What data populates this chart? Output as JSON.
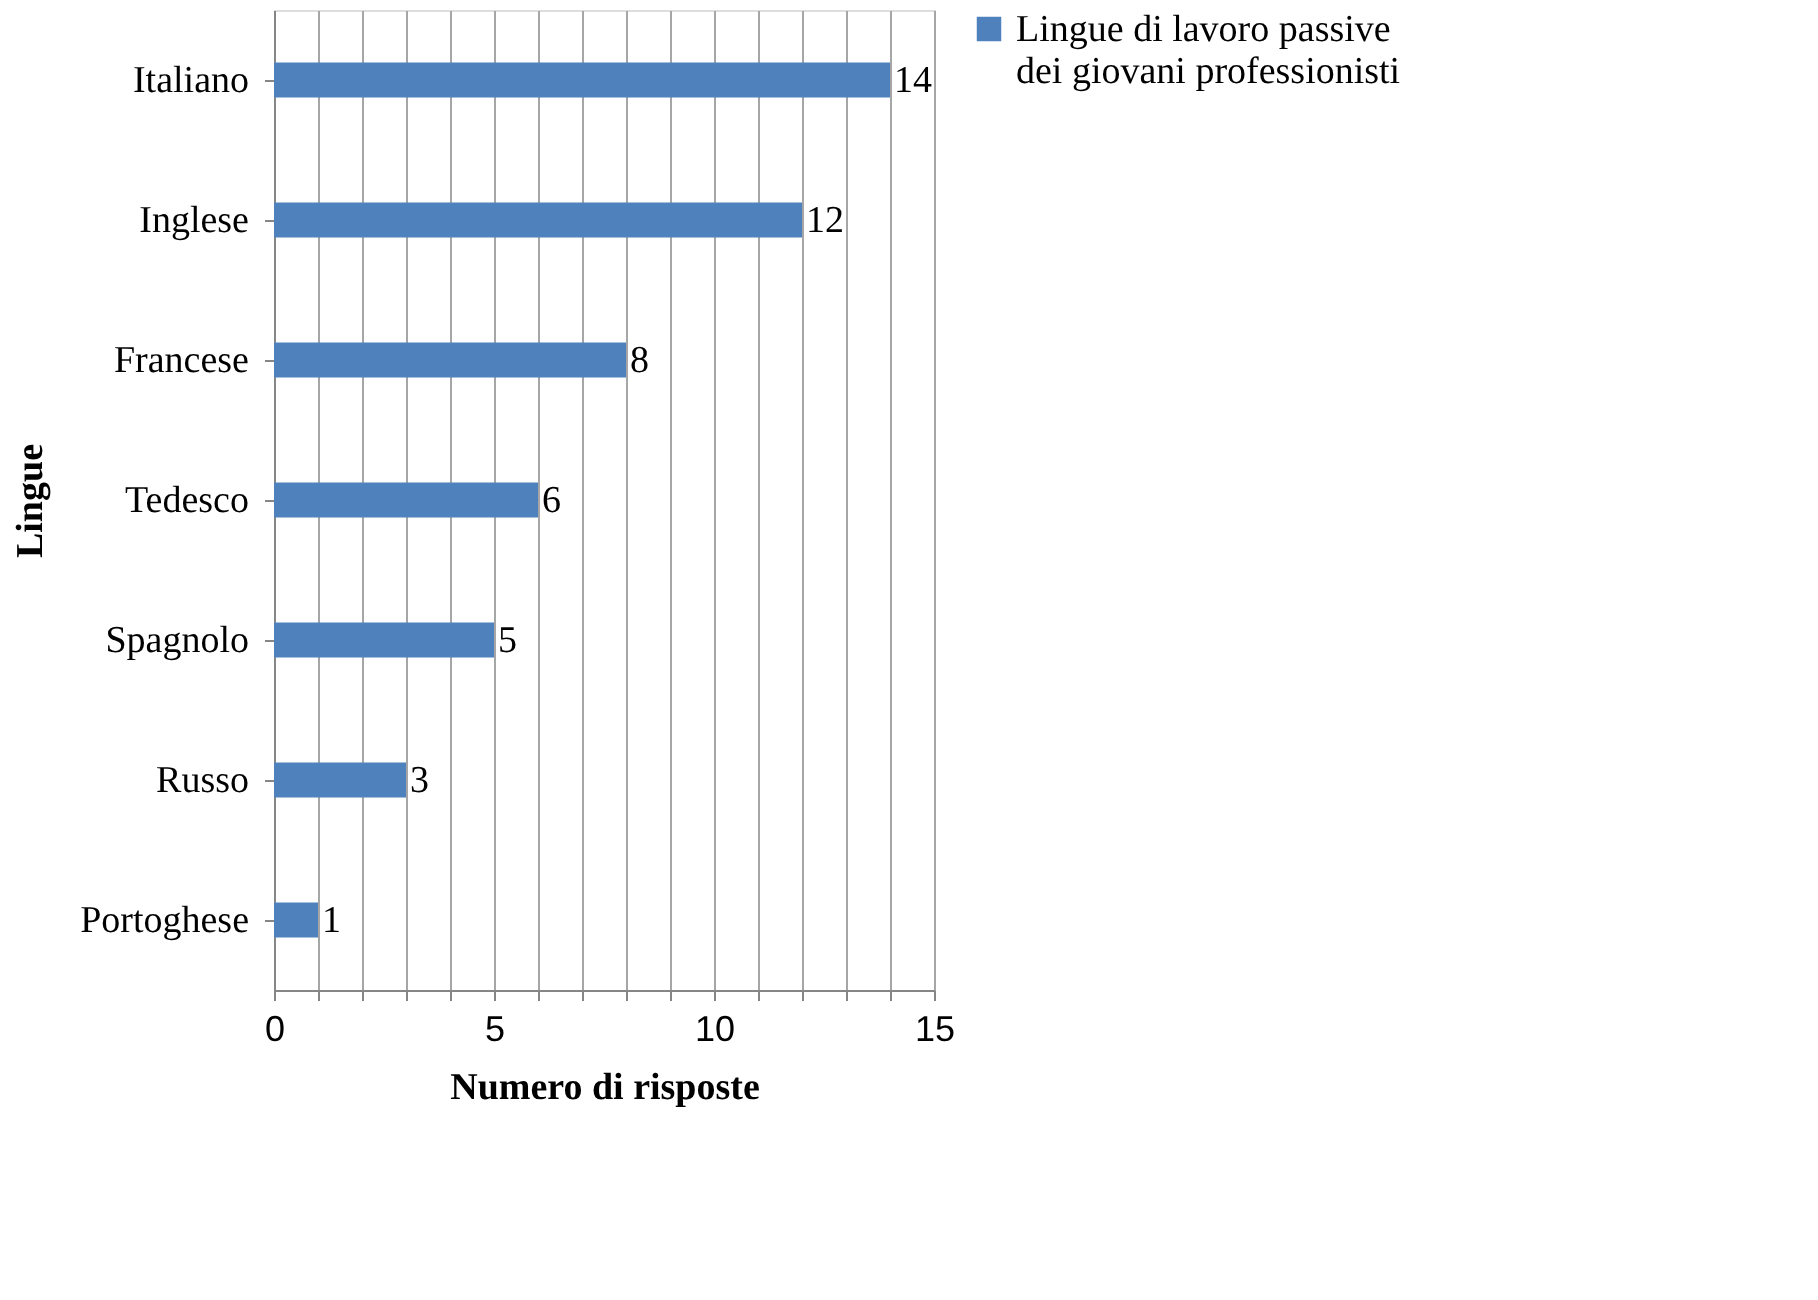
{
  "chart_data": {
    "type": "bar",
    "orientation": "horizontal",
    "ylabel": "Lingue",
    "xlabel": "Numero di risposte",
    "categories": [
      "Italiano",
      "Inglese",
      "Francese",
      "Tedesco",
      "Spagnolo",
      "Russo",
      "Portoghese"
    ],
    "series": [
      {
        "name": "Lingue di lavoro passive dei giovani professionisti",
        "color": "#4f81bd",
        "values": [
          14,
          12,
          8,
          6,
          5,
          3,
          1
        ]
      }
    ],
    "xlim": [
      0,
      15
    ],
    "xticks": [
      0,
      {
        "value": 1,
        "label": null
      },
      {
        "value": 2,
        "label": null
      },
      {
        "value": 3,
        "label": null
      },
      {
        "value": 4,
        "label": null
      },
      5,
      {
        "value": 6,
        "label": null
      },
      {
        "value": 7,
        "label": null
      },
      {
        "value": 8,
        "label": null
      },
      {
        "value": 9,
        "label": null
      },
      10,
      {
        "value": 11,
        "label": null
      },
      {
        "value": 12,
        "label": null
      },
      {
        "value": 13,
        "label": null
      },
      {
        "value": 14,
        "label": null
      },
      15
    ],
    "grid": "x",
    "legend": "right",
    "data_labels": true
  }
}
